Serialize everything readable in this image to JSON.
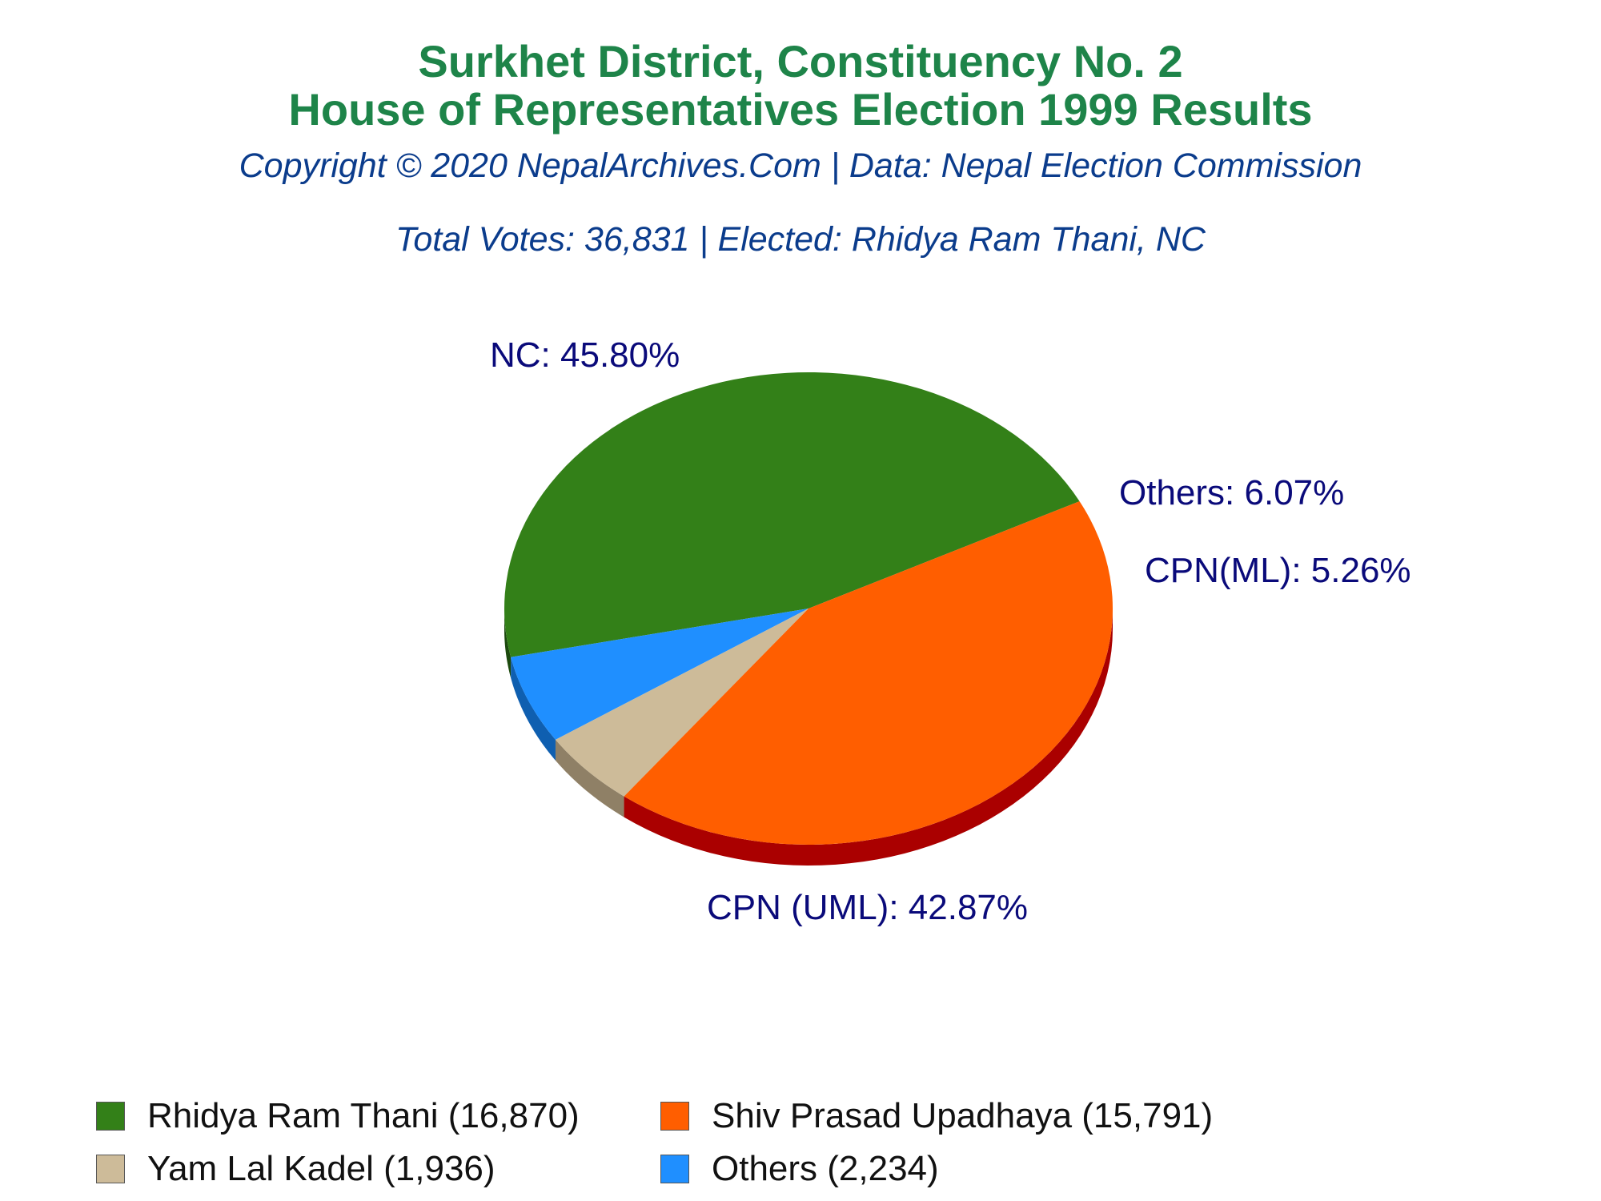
{
  "title": {
    "line1": "Surkhet District, Constituency No. 2",
    "line2": "House of Representatives Election 1999 Results"
  },
  "subtitle": {
    "copyright": "Copyright © 2020 NepalArchives.Com | Data: Nepal Election Commission",
    "summary": "Total Votes: 36,831 | Elected: Rhidya Ram Thani, NC"
  },
  "chart_data": {
    "type": "pie",
    "start_angle_deg": 27,
    "slices": [
      {
        "key": "nc",
        "label": "NC: 45.80%",
        "party": "NC",
        "candidate": "Rhidya Ram Thani",
        "votes": 16870,
        "percent": 45.8,
        "color": "#338018",
        "side_color": "#1c4a0e",
        "legend": "Rhidya Ram Thani (16,870)"
      },
      {
        "key": "others",
        "label": "Others: 6.07%",
        "party": "Others",
        "candidate": "Others",
        "votes": 2234,
        "percent": 6.07,
        "color": "#1f8fff",
        "side_color": "#0f5fb0",
        "legend": "Others (2,234)"
      },
      {
        "key": "cpnml",
        "label": "CPN(ML): 5.26%",
        "party": "CPN(ML)",
        "candidate": "Yam Lal Kadel",
        "votes": 1936,
        "percent": 5.26,
        "color": "#cdbb99",
        "side_color": "#8f8066",
        "legend": "Yam Lal Kadel (1,936)"
      },
      {
        "key": "uml",
        "label": "CPN (UML): 42.87%",
        "party": "CPN (UML)",
        "candidate": "Shiv Prasad Upadhaya",
        "votes": 15791,
        "percent": 42.87,
        "color": "#ff5e00",
        "side_color": "#aa0000",
        "legend": "Shiv Prasad Upadhaya (15,791)"
      }
    ],
    "legend_order": [
      "nc",
      "uml",
      "cpnml",
      "others"
    ],
    "legend_placement": "bottom"
  }
}
